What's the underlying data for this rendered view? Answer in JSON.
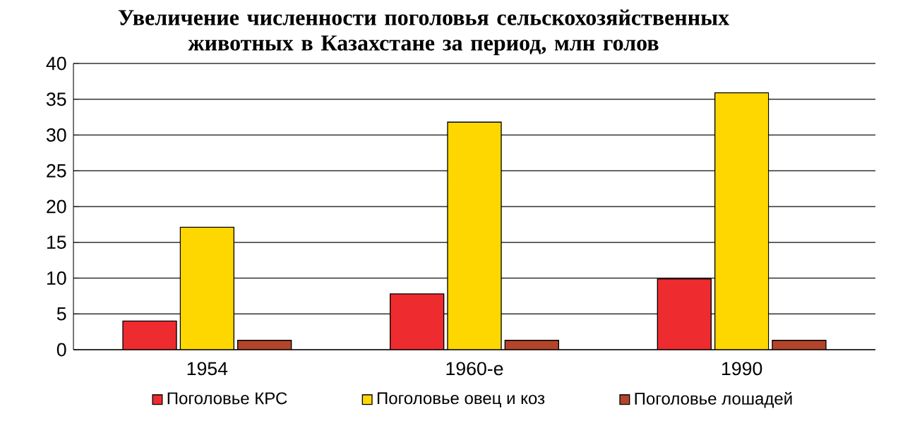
{
  "chart_data": {
    "type": "bar",
    "title": "Увеличение численности поголовья сельскохозяйственных животных в Казахстане за период, млн голов",
    "categories": [
      "1954",
      "1960-е",
      "1990"
    ],
    "series": [
      {
        "name": "Поголовье КРС",
        "color": "#ee2b2f",
        "values": [
          4,
          7.8,
          9.9
        ]
      },
      {
        "name": "Поголовье овец и коз",
        "color": "#ffd700",
        "values": [
          17.1,
          31.8,
          35.9
        ]
      },
      {
        "name": "Поголовье лошадей",
        "color": "#b5452a",
        "values": [
          1.3,
          1.3,
          1.3
        ]
      }
    ],
    "ylim": [
      0,
      40
    ],
    "yticks": [
      0,
      5,
      10,
      15,
      20,
      25,
      30,
      35,
      40
    ],
    "grid": "y",
    "legend": "bottom"
  }
}
